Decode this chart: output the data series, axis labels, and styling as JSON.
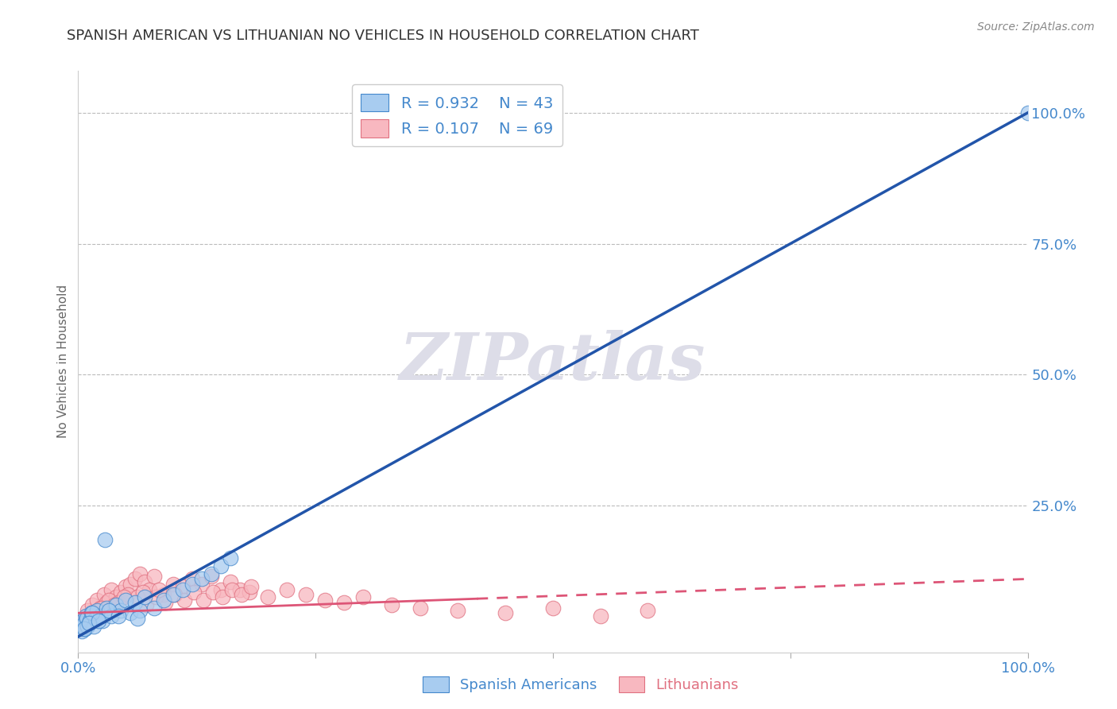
{
  "title": "SPANISH AMERICAN VS LITHUANIAN NO VEHICLES IN HOUSEHOLD CORRELATION CHART",
  "source_text": "Source: ZipAtlas.com",
  "ylabel": "No Vehicles in Household",
  "watermark_text": "ZIPatlas",
  "blue_R": "0.932",
  "blue_N": "43",
  "pink_R": "0.107",
  "pink_N": "69",
  "legend_blue": "Spanish Americans",
  "legend_pink": "Lithuanians",
  "blue_fill_color": "#A8CCF0",
  "pink_fill_color": "#F8B8C0",
  "blue_edge_color": "#4488CC",
  "pink_edge_color": "#E07080",
  "blue_line_color": "#2255AA",
  "pink_line_color": "#DD5577",
  "grid_color": "#BBBBBB",
  "background_color": "#FFFFFF",
  "title_color": "#333333",
  "axis_color": "#4488CC",
  "watermark_color": "#DDDDE8",
  "right_ytick_labels": [
    "100.0%",
    "75.0%",
    "50.0%",
    "25.0%"
  ],
  "right_ytick_values": [
    100.0,
    75.0,
    50.0,
    25.0
  ],
  "xlim": [
    0,
    100
  ],
  "ylim": [
    -3,
    108
  ],
  "blue_line_x0": 0.0,
  "blue_line_y0": 0.0,
  "blue_line_x1": 100.0,
  "blue_line_y1": 100.0,
  "pink_line_x0": 0.0,
  "pink_line_y0": 4.5,
  "pink_line_x1": 100.0,
  "pink_line_y1": 11.0,
  "pink_dash_start": 42.0,
  "blue_scatter_x": [
    0.2,
    0.3,
    0.4,
    0.5,
    0.6,
    0.7,
    0.8,
    0.9,
    1.0,
    1.2,
    1.4,
    1.6,
    1.8,
    2.0,
    2.3,
    2.6,
    3.0,
    3.5,
    4.0,
    4.5,
    5.0,
    5.5,
    6.0,
    6.5,
    7.0,
    8.0,
    9.0,
    10.0,
    11.0,
    12.0,
    13.0,
    14.0,
    15.0,
    16.0,
    2.8,
    1.5,
    3.2,
    0.6,
    1.1,
    2.1,
    4.2,
    6.2,
    100.0
  ],
  "blue_scatter_y": [
    1.5,
    2.0,
    1.0,
    3.0,
    2.5,
    1.5,
    4.0,
    3.5,
    2.0,
    3.0,
    4.5,
    2.0,
    3.5,
    5.0,
    4.0,
    3.0,
    5.5,
    4.0,
    6.0,
    5.0,
    7.0,
    4.5,
    6.5,
    5.0,
    7.5,
    5.5,
    7.0,
    8.0,
    9.0,
    10.0,
    11.0,
    12.0,
    13.5,
    15.0,
    18.5,
    4.5,
    5.0,
    1.5,
    2.5,
    3.0,
    4.0,
    3.5,
    100.0
  ],
  "pink_scatter_x": [
    0.2,
    0.3,
    0.5,
    0.7,
    0.9,
    1.0,
    1.2,
    1.5,
    1.8,
    2.0,
    2.3,
    2.7,
    3.0,
    3.5,
    4.0,
    4.5,
    5.0,
    5.5,
    6.0,
    6.5,
    7.0,
    7.5,
    8.0,
    9.0,
    10.0,
    11.0,
    12.0,
    13.0,
    14.0,
    15.0,
    16.0,
    17.0,
    18.0,
    20.0,
    22.0,
    24.0,
    26.0,
    28.0,
    30.0,
    33.0,
    36.0,
    40.0,
    45.0,
    50.0,
    55.0,
    60.0,
    3.2,
    4.2,
    5.2,
    6.2,
    7.2,
    8.2,
    9.2,
    10.2,
    11.2,
    12.2,
    13.2,
    14.2,
    15.2,
    16.2,
    17.2,
    18.2,
    2.5,
    3.8,
    1.5,
    0.8,
    4.8,
    6.8,
    8.5
  ],
  "pink_scatter_y": [
    2.5,
    1.5,
    3.0,
    2.0,
    4.0,
    5.0,
    3.5,
    6.0,
    4.5,
    7.0,
    5.5,
    8.0,
    6.5,
    9.0,
    7.5,
    8.5,
    9.5,
    10.0,
    11.0,
    12.0,
    10.5,
    9.0,
    11.5,
    8.0,
    10.0,
    9.5,
    11.0,
    10.0,
    11.5,
    9.0,
    10.5,
    9.0,
    8.5,
    7.5,
    9.0,
    8.0,
    7.0,
    6.5,
    7.5,
    6.0,
    5.5,
    5.0,
    4.5,
    5.5,
    4.0,
    5.0,
    7.0,
    6.5,
    8.0,
    7.5,
    6.0,
    7.5,
    6.5,
    8.0,
    7.0,
    8.5,
    7.0,
    8.5,
    7.5,
    9.0,
    8.0,
    9.5,
    5.5,
    6.0,
    4.5,
    3.0,
    7.5,
    8.5,
    9.0
  ]
}
